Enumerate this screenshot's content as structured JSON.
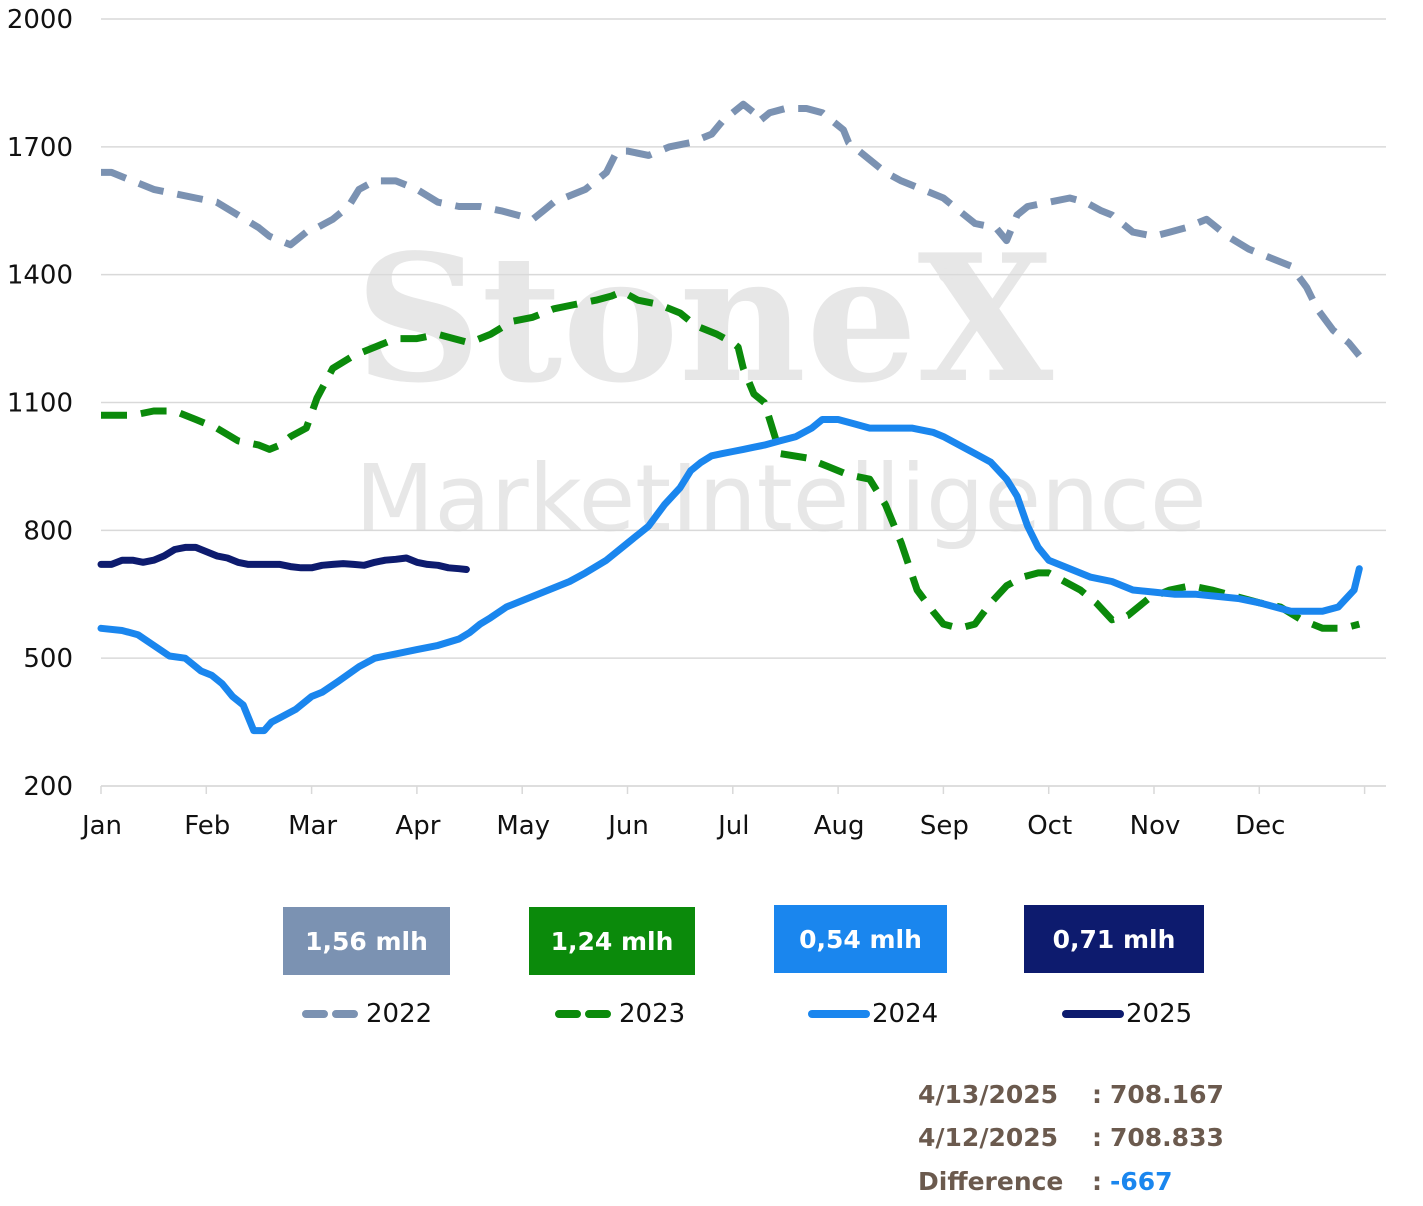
{
  "chart_data": {
    "type": "line",
    "watermark": {
      "brand": "StoneX",
      "registered": "®",
      "tagline": "MarketIntelligence"
    },
    "ylim": [
      200,
      2000
    ],
    "yticks": [
      200,
      500,
      800,
      1100,
      1400,
      1700,
      2000
    ],
    "months": [
      "Jan",
      "Feb",
      "Mar",
      "Apr",
      "May",
      "Jun",
      "Jul",
      "Aug",
      "Sep",
      "Oct",
      "Nov",
      "Dec"
    ],
    "grid": true,
    "legend_position": "bottom",
    "series": [
      {
        "name": "2022",
        "color": "#7b92b2",
        "style": "dashed",
        "x": [
          0,
          0.1,
          0.3,
          0.5,
          0.7,
          0.9,
          1.1,
          1.3,
          1.5,
          1.6,
          1.7,
          1.8,
          1.95,
          2.05,
          2.2,
          2.35,
          2.45,
          2.6,
          2.8,
          3.0,
          3.2,
          3.4,
          3.6,
          3.8,
          3.95,
          4.1,
          4.2,
          4.3,
          4.4,
          4.6,
          4.8,
          4.9,
          5.0,
          5.2,
          5.4,
          5.6,
          5.8,
          5.9,
          6.0,
          6.1,
          6.2,
          6.25,
          6.35,
          6.5,
          6.7,
          6.85,
          6.95,
          7.05,
          7.1,
          7.25,
          7.45,
          7.6,
          7.8,
          8.0,
          8.15,
          8.3,
          8.5,
          8.6,
          8.7,
          8.8,
          9.0,
          9.2,
          9.35,
          9.5,
          9.6,
          9.8,
          10.0,
          10.15,
          10.3,
          10.5,
          10.7,
          10.9,
          11.0,
          11.1,
          11.3,
          11.45,
          11.55,
          11.7,
          11.85,
          11.95
        ],
        "y": [
          1640,
          1640,
          1620,
          1600,
          1590,
          1580,
          1570,
          1540,
          1510,
          1490,
          1480,
          1470,
          1500,
          1510,
          1530,
          1560,
          1600,
          1620,
          1620,
          1600,
          1570,
          1560,
          1560,
          1550,
          1540,
          1530,
          1550,
          1570,
          1580,
          1600,
          1640,
          1690,
          1690,
          1680,
          1700,
          1710,
          1730,
          1760,
          1780,
          1800,
          1780,
          1760,
          1780,
          1790,
          1790,
          1780,
          1760,
          1740,
          1710,
          1680,
          1640,
          1620,
          1600,
          1580,
          1550,
          1520,
          1510,
          1480,
          1540,
          1560,
          1570,
          1580,
          1570,
          1550,
          1540,
          1500,
          1490,
          1500,
          1510,
          1530,
          1490,
          1460,
          1450,
          1440,
          1420,
          1370,
          1320,
          1270,
          1240,
          1210
        ],
        "annotation_box": "1,56 mlh"
      },
      {
        "name": "2023",
        "color": "#0b8a0b",
        "style": "dashed",
        "x": [
          0,
          0.3,
          0.5,
          0.7,
          0.9,
          1.1,
          1.3,
          1.5,
          1.6,
          1.7,
          1.8,
          1.95,
          2.05,
          2.2,
          2.4,
          2.6,
          2.8,
          3.0,
          3.2,
          3.35,
          3.5,
          3.7,
          3.9,
          4.1,
          4.3,
          4.5,
          4.7,
          4.85,
          4.95,
          5.1,
          5.3,
          5.5,
          5.65,
          5.85,
          6.0,
          6.05,
          6.1,
          6.2,
          6.3,
          6.45,
          6.7,
          6.9,
          7.1,
          7.3,
          7.45,
          7.6,
          7.75,
          7.9,
          8.0,
          8.15,
          8.3,
          8.45,
          8.6,
          8.75,
          8.9,
          9.0,
          9.15,
          9.3,
          9.45,
          9.6,
          9.75,
          9.95,
          10.15,
          10.35,
          10.55,
          10.7,
          10.85,
          11.0,
          11.2,
          11.4,
          11.6,
          11.8,
          11.95
        ],
        "y": [
          1070,
          1070,
          1080,
          1080,
          1060,
          1040,
          1010,
          1000,
          990,
          1000,
          1020,
          1040,
          1110,
          1180,
          1210,
          1230,
          1250,
          1250,
          1260,
          1250,
          1240,
          1260,
          1290,
          1300,
          1320,
          1330,
          1340,
          1350,
          1360,
          1340,
          1330,
          1310,
          1280,
          1260,
          1240,
          1230,
          1180,
          1120,
          1100,
          980,
          970,
          950,
          930,
          920,
          860,
          770,
          660,
          610,
          580,
          570,
          580,
          630,
          670,
          690,
          700,
          700,
          680,
          660,
          630,
          590,
          600,
          640,
          660,
          670,
          660,
          650,
          640,
          630,
          620,
          590,
          570,
          570,
          580
        ],
        "annotation_box": "1,24 mlh"
      },
      {
        "name": "2024",
        "color": "#1a86ee",
        "style": "solid",
        "x": [
          0,
          0.2,
          0.35,
          0.5,
          0.65,
          0.8,
          0.95,
          1.05,
          1.15,
          1.25,
          1.35,
          1.45,
          1.55,
          1.62,
          1.7,
          1.85,
          2.0,
          2.1,
          2.25,
          2.45,
          2.6,
          2.8,
          3.0,
          3.2,
          3.4,
          3.5,
          3.6,
          3.7,
          3.85,
          4.0,
          4.15,
          4.3,
          4.45,
          4.6,
          4.8,
          5.0,
          5.2,
          5.35,
          5.5,
          5.6,
          5.7,
          5.8,
          5.9,
          6.0,
          6.1,
          6.2,
          6.3,
          6.45,
          6.6,
          6.75,
          6.85,
          7.0,
          7.15,
          7.3,
          7.5,
          7.7,
          7.9,
          8.0,
          8.15,
          8.3,
          8.45,
          8.6,
          8.7,
          8.8,
          8.9,
          9.0,
          9.2,
          9.4,
          9.6,
          9.8,
          10.0,
          10.2,
          10.4,
          10.6,
          10.8,
          11.0,
          11.15,
          11.3,
          11.45,
          11.6,
          11.75,
          11.9,
          11.95
        ],
        "y": [
          570,
          565,
          555,
          530,
          505,
          500,
          470,
          460,
          440,
          410,
          390,
          330,
          330,
          350,
          360,
          380,
          410,
          420,
          445,
          480,
          500,
          510,
          520,
          530,
          545,
          560,
          580,
          595,
          620,
          635,
          650,
          665,
          680,
          700,
          730,
          770,
          810,
          860,
          900,
          940,
          960,
          975,
          980,
          985,
          990,
          995,
          1000,
          1010,
          1020,
          1040,
          1060,
          1060,
          1050,
          1040,
          1040,
          1040,
          1030,
          1020,
          1000,
          980,
          960,
          920,
          880,
          810,
          760,
          730,
          710,
          690,
          680,
          660,
          655,
          650,
          650,
          645,
          640,
          630,
          620,
          610,
          610,
          610,
          620,
          660,
          710
        ],
        "annotation_box": "0,54 mlh"
      },
      {
        "name": "2025",
        "color": "#0d1b6e",
        "style": "solid",
        "x": [
          0,
          0.1,
          0.2,
          0.3,
          0.4,
          0.5,
          0.6,
          0.7,
          0.8,
          0.9,
          1.0,
          1.1,
          1.2,
          1.3,
          1.4,
          1.5,
          1.6,
          1.7,
          1.8,
          1.9,
          2.0,
          2.1,
          2.2,
          2.3,
          2.4,
          2.5,
          2.6,
          2.7,
          2.8,
          2.9,
          3.0,
          3.1,
          3.2,
          3.3,
          3.4,
          3.47
        ],
        "y": [
          720,
          720,
          730,
          730,
          725,
          730,
          740,
          755,
          760,
          760,
          750,
          740,
          735,
          725,
          720,
          720,
          720,
          720,
          715,
          712,
          712,
          718,
          720,
          722,
          720,
          718,
          725,
          730,
          732,
          735,
          725,
          720,
          718,
          712,
          710,
          708
        ],
        "annotation_box": "0,71 mlh"
      }
    ]
  },
  "legend": [
    {
      "label": "2022",
      "color": "#7b92b2",
      "style": "dashed"
    },
    {
      "label": "2023",
      "color": "#0b8a0b",
      "style": "dashed"
    },
    {
      "label": "2024",
      "color": "#1a86ee",
      "style": "solid"
    },
    {
      "label": "2025",
      "color": "#0d1b6e",
      "style": "solid"
    }
  ],
  "badges": [
    {
      "text": "1,56 mlh",
      "color": "#7b92b2"
    },
    {
      "text": "1,24 mlh",
      "color": "#0b8a0b"
    },
    {
      "text": "0,54 mlh",
      "color": "#1a86ee"
    },
    {
      "text": "0,71 mlh",
      "color": "#0d1b6e"
    }
  ],
  "info": [
    {
      "label": "4/13/2025",
      "colon": ":",
      "value": "708.167",
      "value_color": "#6b5a4e"
    },
    {
      "label": "4/12/2025",
      "colon": ":",
      "value": "708.833",
      "value_color": "#6b5a4e"
    },
    {
      "label": "Difference",
      "colon": ":",
      "value": "-667",
      "value_color": "#1a86ee"
    }
  ]
}
